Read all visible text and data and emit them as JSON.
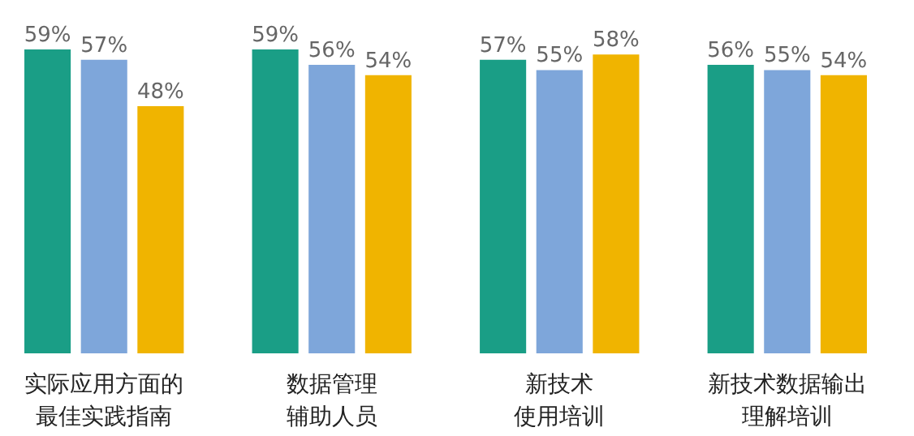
{
  "chart_data": {
    "type": "bar",
    "categories": [
      "实际应用方面的最佳实践指南",
      "数据管理辅助人员",
      "新技术使用培训",
      "新技术数据输出理解培训"
    ],
    "series": [
      {
        "color": "#1a9e86",
        "values": [
          59,
          59,
          57,
          56
        ],
        "value_labels": [
          "59%",
          "59%",
          "57%",
          "56%"
        ]
      },
      {
        "color": "#7ea6da",
        "values": [
          57,
          56,
          55,
          55
        ],
        "value_labels": [
          "57%",
          "56%",
          "55%",
          "55%"
        ]
      },
      {
        "color": "#f0b400",
        "values": [
          48,
          54,
          58,
          54
        ],
        "value_labels": [
          "48%",
          "54%",
          "58%",
          "54%"
        ]
      }
    ]
  }
}
